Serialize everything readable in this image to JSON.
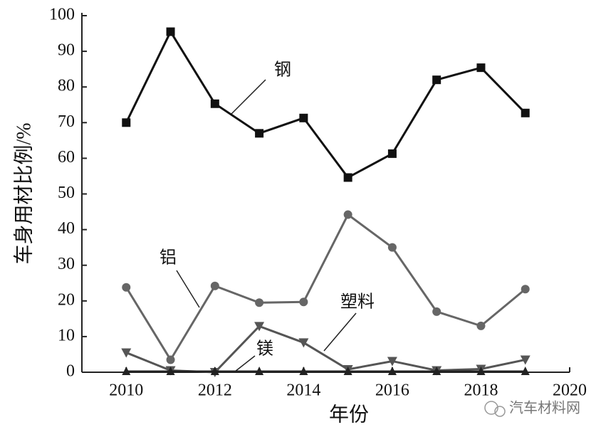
{
  "chart_data": {
    "type": "line",
    "x": [
      2010,
      2011,
      2012,
      2013,
      2014,
      2015,
      2016,
      2017,
      2018,
      2019
    ],
    "series": [
      {
        "name": "钢",
        "color": "#111111",
        "marker": "square",
        "values": [
          70,
          95.5,
          75.3,
          67,
          71.3,
          54.6,
          61.3,
          82,
          85.4,
          72.7
        ]
      },
      {
        "name": "铝",
        "color": "#666666",
        "marker": "circle",
        "values": [
          23.8,
          3.5,
          24.2,
          19.5,
          19.7,
          44.2,
          35,
          17,
          13,
          23.3
        ]
      },
      {
        "name": "塑料",
        "color": "#555555",
        "marker": "triangle-down",
        "values": [
          5.5,
          0.5,
          0,
          12.9,
          8.3,
          0.8,
          3.1,
          0.5,
          0.9,
          3.5
        ]
      },
      {
        "name": "镁",
        "color": "#222222",
        "marker": "triangle-up",
        "values": [
          0.2,
          0.2,
          0.2,
          0.2,
          0.2,
          0.2,
          0.2,
          0.2,
          0.2,
          0.2
        ]
      }
    ],
    "xlabel": "年份",
    "ylabel": "车身用材比例/%",
    "xlim": [
      2009,
      2020
    ],
    "ylim": [
      0,
      100
    ],
    "xticks": [
      2010,
      2012,
      2014,
      2016,
      2018,
      2020
    ],
    "yticks": [
      0,
      10,
      20,
      30,
      40,
      50,
      60,
      70,
      80,
      90,
      100
    ],
    "watermark": "汽车材料网"
  }
}
